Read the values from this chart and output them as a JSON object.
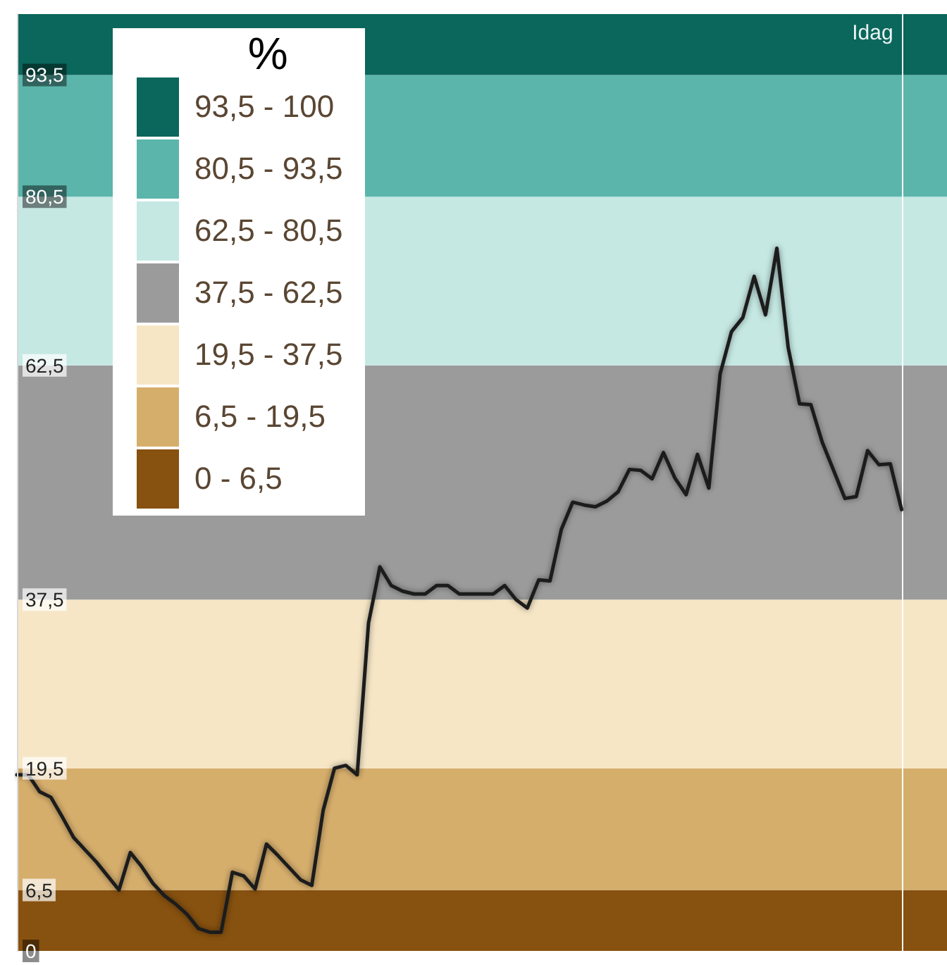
{
  "chart_data": {
    "type": "line",
    "categories": [
      null,
      null,
      null,
      null,
      null,
      null,
      null,
      null,
      null,
      null,
      null,
      null,
      null,
      null,
      null,
      null,
      null,
      null,
      null,
      null,
      null,
      null,
      null,
      null,
      null,
      null,
      null,
      null,
      null,
      null,
      null,
      null,
      null,
      null,
      null,
      null,
      null,
      null,
      null,
      null,
      null,
      null,
      null,
      null,
      null,
      null,
      null,
      null,
      null,
      null,
      null,
      null,
      null,
      null,
      null,
      null,
      null,
      null,
      null,
      null,
      null,
      null,
      null,
      null,
      null,
      null,
      null,
      null,
      null,
      null,
      null,
      null,
      null,
      null,
      null,
      null,
      null,
      null,
      null,
      null,
      null,
      null,
      null
    ],
    "series": [
      {
        "color": "#1e1e1e",
        "values": [
          18.8,
          18.8,
          17.0,
          16.4,
          14.3,
          12.1,
          10.8,
          9.5,
          8.0,
          6.5,
          10.5,
          9.0,
          7.2,
          5.9,
          5.0,
          3.9,
          2.4,
          2.0,
          2.0,
          8.4,
          8.0,
          6.6,
          11.4,
          10.2,
          8.9,
          7.6,
          7.0,
          15.0,
          19.5,
          19.8,
          18.8,
          35.0,
          41.0,
          39.0,
          38.4,
          38.1,
          38.1,
          39.0,
          39.0,
          38.1,
          38.1,
          38.1,
          38.1,
          39.0,
          37.5,
          36.6,
          39.6,
          39.5,
          45.0,
          47.9,
          47.6,
          47.4,
          48.0,
          49.0,
          51.4,
          51.3,
          50.4,
          53.2,
          50.5,
          48.7,
          53.0,
          49.4,
          61.6,
          66.1,
          67.6,
          72.0,
          67.9,
          75.0,
          64.4,
          58.4,
          58.3,
          54.3,
          51.3,
          48.3,
          48.5,
          53.4,
          51.9,
          52.0,
          47.1,
          null,
          null,
          null,
          null
        ]
      }
    ],
    "ylim": [
      0,
      100
    ],
    "yticks": [
      0,
      {
        "value": 6.5,
        "label": "6,5"
      },
      {
        "value": 19.5,
        "label": "19,5"
      },
      {
        "value": 37.5,
        "label": "37,5"
      },
      {
        "value": 62.5,
        "label": "62,5"
      },
      {
        "value": 80.5,
        "label": "80,5"
      },
      {
        "value": 93.5,
        "label": "93,5"
      }
    ],
    "tick_labels": "y",
    "grid": false,
    "line_style": "solid",
    "legend": "top left",
    "legend_title": "%",
    "bands": [
      {
        "axis": "y",
        "from": 0,
        "to": 6.5,
        "label": "0 - 6,5",
        "color": "#87510f"
      },
      {
        "axis": "y",
        "from": 6.5,
        "to": 19.5,
        "label": "6,5 - 19,5",
        "color": "#d6ae6c"
      },
      {
        "axis": "y",
        "from": 19.5,
        "to": 37.5,
        "label": "19,5 - 37,5",
        "color": "#f6e6c6"
      },
      {
        "axis": "y",
        "from": 37.5,
        "to": 62.5,
        "label": "37,5 - 62,5",
        "color": "#9b9b9b"
      },
      {
        "axis": "y",
        "from": 62.5,
        "to": 80.5,
        "label": "62,5 - 80,5",
        "color": "#c5e8e3"
      },
      {
        "axis": "y",
        "from": 80.5,
        "to": 93.5,
        "label": "80,5 - 93,5",
        "color": "#5bb5ab"
      },
      {
        "axis": "y",
        "from": 93.5,
        "to": 100,
        "label": "93,5 - 100",
        "color": "#0b665b"
      }
    ],
    "ref_lines": [
      {
        "axis": "x",
        "label": "Idag",
        "color": "#ffffff"
      }
    ]
  }
}
